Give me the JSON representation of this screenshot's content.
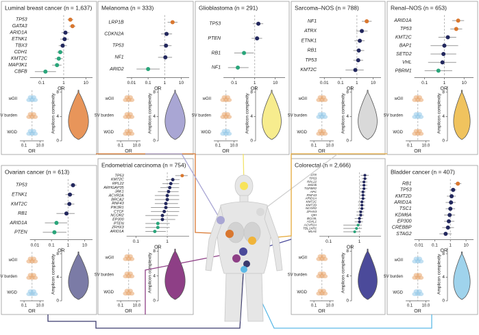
{
  "chart_data": [
    {
      "type": "forest",
      "title": "Luminal breast cancer (n = 1,637)",
      "genes": [
        "TP53",
        "GATA3",
        "ARID1A",
        "ETNK1",
        "TBX3",
        "CDH1",
        "KMT2C",
        "MAP3K1",
        "CBFB"
      ],
      "values": [
        2,
        2.5,
        1.2,
        1.1,
        0.9,
        0.7,
        0.6,
        0.5,
        0.15
      ],
      "ci_low": [
        1.5,
        1.8,
        0.8,
        0.7,
        0.6,
        0.5,
        0.4,
        0.3,
        0.05
      ],
      "ci_high": [
        2.7,
        3.4,
        1.8,
        1.7,
        1.4,
        1,
        0.9,
        0.8,
        0.45
      ],
      "point_colors": [
        "#d9772f",
        "#d9772f",
        "#23285e",
        "#23285e",
        "#23285e",
        "#2aa57a",
        "#2aa57a",
        "#2aa57a",
        "#2aa57a"
      ],
      "xlim": [
        0.03,
        20
      ],
      "xticks": [
        0.1,
        1,
        10
      ],
      "log_x": true,
      "xlabel": "OR",
      "mini": {
        "rows": [
          "wGII",
          "SV burden",
          "WGD"
        ],
        "xlim": [
          0.03,
          30
        ],
        "xticks": [
          0.1,
          {
            "value": 10,
            "label": "10.0"
          }
        ],
        "xlabel": "OR",
        "colors": [
          "#8fc6e8",
          "#e8a46a",
          "#8fc6e8"
        ]
      },
      "violin": {
        "ylabel": "Amplicon complexity",
        "ylim": [
          0,
          9
        ],
        "yticks": [
          0,
          4,
          8
        ],
        "color": "#e8955a"
      }
    },
    {
      "type": "forest",
      "title": "Melanoma (n = 333)",
      "genes": [
        "LRP1B",
        "CDKN2A",
        "TP53",
        "NF1",
        "ARID2"
      ],
      "values": [
        3,
        1.3,
        1.2,
        1.1,
        0.1
      ],
      "ci_low": [
        1.5,
        0.6,
        0.5,
        0.4,
        0.02
      ],
      "ci_high": [
        6,
        2.8,
        2.6,
        2.8,
        0.5
      ],
      "point_colors": [
        "#d9772f",
        "#23285e",
        "#23285e",
        "#23285e",
        "#2aa57a"
      ],
      "xlim": [
        0.005,
        30
      ],
      "xticks": [
        0.01,
        0.1,
        1,
        10
      ],
      "log_x": true,
      "xlabel": "OR",
      "mini": {
        "rows": [
          "wGII",
          "SV burden",
          "WGD"
        ],
        "xlim": [
          0.03,
          30
        ],
        "xticks": [
          0.1,
          {
            "value": 10,
            "label": "10.0"
          }
        ],
        "xlabel": "OR",
        "colors": [
          "#e8a46a",
          "#e8a46a",
          "#e8a46a"
        ]
      },
      "violin": {
        "ylabel": "Amplicon complexity",
        "ylim": [
          0,
          9
        ],
        "yticks": [
          0,
          4,
          8
        ],
        "color": "#a9a6d4"
      }
    },
    {
      "type": "forest",
      "title": "Glioblastoma (n = 291)",
      "genes": [
        "TP53",
        "PTEN",
        "RB1",
        "NF1"
      ],
      "values": [
        1.5,
        1.3,
        0.3,
        0.15
      ],
      "ci_low": [
        0.8,
        0.7,
        0.1,
        0.05
      ],
      "ci_high": [
        2.6,
        2.3,
        0.9,
        0.5
      ],
      "point_colors": [
        "#23285e",
        "#23285e",
        "#2aa57a",
        "#2aa57a"
      ],
      "xlim": [
        0.03,
        30
      ],
      "xticks": [
        0.1,
        1,
        10
      ],
      "log_x": true,
      "xlabel": "OR",
      "mini": {
        "rows": [
          "wGII",
          "SV burden",
          "WGD"
        ],
        "xlim": [
          0.03,
          30
        ],
        "xticks": [
          0.1,
          {
            "value": 10,
            "label": "10.0"
          }
        ],
        "xlabel": "OR",
        "colors": [
          "#e8a46a",
          "#e8a46a",
          "#8fc6e8"
        ]
      },
      "violin": {
        "ylabel": "Amplicon complexity",
        "ylim": [
          0,
          9
        ],
        "yticks": [
          0,
          4,
          8
        ],
        "color": "#f7ec8e"
      }
    },
    {
      "type": "forest",
      "title": "Sarcoma–NOS (n = 788)",
      "genes": [
        "NF1",
        "ATRX",
        "ETNK1",
        "RB1",
        "TP53",
        "KMT2C"
      ],
      "values": [
        4,
        2,
        1.5,
        1.3,
        1.2,
        0.8
      ],
      "ci_low": [
        2,
        0.9,
        0.7,
        0.6,
        0.6,
        0.2
      ],
      "ci_high": [
        8,
        4.5,
        3,
        2.8,
        2.4,
        2.6
      ],
      "point_colors": [
        "#d9772f",
        "#23285e",
        "#23285e",
        "#23285e",
        "#23285e",
        "#23285e"
      ],
      "xlim": [
        0.005,
        30
      ],
      "xticks": [
        0.01,
        0.1,
        1,
        10
      ],
      "log_x": true,
      "xlabel": "OR",
      "mini": {
        "rows": [
          "wGII",
          "SV burden",
          "WGD"
        ],
        "xlim": [
          0.03,
          30
        ],
        "xticks": [
          0.1,
          {
            "value": 10,
            "label": "10.0"
          }
        ],
        "xlabel": "OR",
        "colors": [
          "#e8a46a",
          "#8fc6e8",
          "#e8a46a"
        ]
      },
      "violin": {
        "ylabel": "Amplicon complexity",
        "ylim": [
          0,
          9
        ],
        "yticks": [
          0,
          4,
          8
        ],
        "color": "#d9d9d9"
      }
    },
    {
      "type": "forest",
      "title": "Renal–NOS (n = 653)",
      "genes": [
        "ARID1A",
        "TP53",
        "KMT2C",
        "BAP1",
        "SETD2",
        "VHL",
        "PBRM1"
      ],
      "values": [
        5,
        4,
        1.5,
        1,
        0.9,
        0.8,
        0.5
      ],
      "ci_low": [
        2.5,
        2,
        0.5,
        0.2,
        0.2,
        0.15,
        0.1
      ],
      "ci_high": [
        10,
        8,
        4,
        5,
        4,
        4,
        2.5
      ],
      "point_colors": [
        "#d9772f",
        "#d9772f",
        "#23285e",
        "#23285e",
        "#23285e",
        "#23285e",
        "#2aa57a"
      ],
      "xlim": [
        0.03,
        30
      ],
      "xticks": [
        0.1,
        1,
        10
      ],
      "log_x": true,
      "xlabel": "OR",
      "mini": {
        "rows": [
          "wGII",
          "SV burden",
          "WGD"
        ],
        "xlim": [
          0.03,
          30
        ],
        "xticks": [
          0.1,
          {
            "value": 10,
            "label": "10.0"
          }
        ],
        "xlabel": "OR",
        "colors": [
          "#e8a46a",
          "#8fc6e8",
          "#e8a46a"
        ]
      },
      "violin": {
        "ylabel": "Amplicon complexity",
        "ylim": [
          0,
          9
        ],
        "yticks": [
          0,
          4,
          8
        ],
        "color": "#f0c35e"
      }
    },
    {
      "type": "forest",
      "title": "Ovarian cancer (n = 613)",
      "genes": [
        "TP53",
        "ETNK1",
        "KMT2C",
        "RB1",
        "ARID1A",
        "PTEN"
      ],
      "values": [
        2,
        1.3,
        1.2,
        0.8,
        0.2,
        0.15
      ],
      "ci_low": [
        1.2,
        0.7,
        0.6,
        0.2,
        0.04,
        0.03
      ],
      "ci_high": [
        3.3,
        2.4,
        2.4,
        2.5,
        0.9,
        0.8
      ],
      "point_colors": [
        "#23285e",
        "#23285e",
        "#23285e",
        "#23285e",
        "#2aa57a",
        "#2aa57a"
      ],
      "xlim": [
        0.005,
        30
      ],
      "xticks": [
        0.01,
        0.1,
        1,
        10
      ],
      "log_x": true,
      "xlabel": "OR",
      "mini": {
        "rows": [
          "wGII",
          "SV burden",
          "WGD"
        ],
        "xlim": [
          0.03,
          30
        ],
        "xticks": [
          0.1,
          {
            "value": 10,
            "label": "10.0"
          }
        ],
        "xlabel": "OR",
        "colors": [
          "#e8a46a",
          "#e8a46a",
          "#8fc6e8"
        ]
      },
      "violin": {
        "ylabel": "Amplicon complexity",
        "ylim": [
          0,
          9
        ],
        "yticks": [
          0,
          4,
          8
        ],
        "color": "#7b7ba6"
      }
    },
    {
      "type": "forest",
      "title": "Endometrial carcinoma (n = 754)",
      "genes": [
        "TP53",
        "KMT2C",
        "RPL22",
        "ARHGAP35",
        "JAK1",
        "ACVR2A",
        "BRCA2",
        "RNF43",
        "PIK3R1",
        "CTCF",
        "NCOR2",
        "EP300",
        "PTEN",
        "ZFHX3",
        "ARID1A"
      ],
      "values": [
        3,
        1.5,
        1.3,
        1.2,
        1.1,
        1,
        1,
        0.9,
        0.9,
        0.8,
        0.7,
        0.7,
        0.5,
        0.5,
        0.4
      ],
      "ci_low": [
        1.8,
        0.9,
        0.7,
        0.6,
        0.5,
        0.4,
        0.4,
        0.4,
        0.3,
        0.3,
        0.2,
        0.3,
        0.2,
        0.2,
        0.2
      ],
      "ci_high": [
        4.5,
        2.5,
        2.4,
        2.4,
        2.3,
        2.4,
        2.4,
        2.2,
        2.5,
        2.4,
        2.2,
        1.8,
        1.2,
        1.2,
        0.9
      ],
      "point_colors": [
        "#d9772f",
        "#23285e",
        "#23285e",
        "#23285e",
        "#23285e",
        "#23285e",
        "#23285e",
        "#23285e",
        "#23285e",
        "#23285e",
        "#23285e",
        "#23285e",
        "#2aa57a",
        "#2aa57a",
        "#2aa57a"
      ],
      "xlim": [
        0.05,
        5
      ],
      "xticks": [
        0.1,
        1
      ],
      "log_x": true,
      "xlabel": "OR",
      "mini": {
        "rows": [
          "wGII",
          "SV burden",
          "WGD"
        ],
        "xlim": [
          0.03,
          30
        ],
        "xticks": [
          0.1,
          {
            "value": 10,
            "label": "10.0"
          }
        ],
        "xlabel": "OR",
        "colors": [
          "#e8a46a",
          "#e8a46a",
          "#e8a46a"
        ]
      },
      "violin": {
        "ylabel": "Amplicon complexity",
        "ylim": [
          0,
          9
        ],
        "yticks": [
          0,
          4,
          8
        ],
        "color": "#8e3f86"
      }
    },
    {
      "type": "forest",
      "title": "Colorectal (n = 2,666)",
      "genes": [
        "ATR",
        "TP53",
        "RPL22",
        "MSH6",
        "TGFBR2",
        "APC",
        "RNF43",
        "ARID1A",
        "KMT2C",
        "KMT2D",
        "NCOR2",
        "ZFHX3",
        "QKI",
        "BCL9L",
        "ASXL1",
        "ACVR2A",
        "TBL1XR1",
        "MLH1"
      ],
      "values": [
        1.5,
        1.5,
        1.4,
        1.4,
        1.4,
        1.3,
        1.3,
        1.3,
        1.2,
        1.2,
        1.2,
        1.1,
        1.1,
        1,
        1,
        0.9,
        0.8,
        0.7
      ],
      "ci_low": [
        1.1,
        1.2,
        1,
        1,
        1,
        1,
        1,
        1,
        0.9,
        0.9,
        0.9,
        0.8,
        0.8,
        0.7,
        0.7,
        0.3,
        0.3,
        0.3
      ],
      "ci_high": [
        2,
        1.8,
        1.8,
        1.8,
        1.8,
        1.6,
        1.6,
        1.6,
        1.5,
        1.5,
        1.5,
        1.4,
        1.4,
        1.3,
        1.3,
        1.2,
        1.2,
        1.1
      ],
      "point_colors": [
        "#23285e",
        "#23285e",
        "#23285e",
        "#23285e",
        "#23285e",
        "#23285e",
        "#23285e",
        "#23285e",
        "#23285e",
        "#23285e",
        "#23285e",
        "#23285e",
        "#23285e",
        "#23285e",
        "#23285e",
        "#2aa57a",
        "#2aa57a",
        "#2aa57a"
      ],
      "xlim": [
        0.05,
        5
      ],
      "xticks": [
        0.1,
        1
      ],
      "log_x": true,
      "xlabel": "OR",
      "mini": {
        "rows": [
          "wGII",
          "SV burden",
          "WGD"
        ],
        "xlim": [
          0.03,
          30
        ],
        "xticks": [
          0.1,
          {
            "value": 10,
            "label": "10.0"
          }
        ],
        "xlabel": "OR",
        "colors": [
          "#e8a46a",
          "#e8a46a",
          "#e8a46a"
        ]
      },
      "violin": {
        "ylabel": "Amplicon complexity",
        "ylim": [
          0,
          9
        ],
        "yticks": [
          0,
          4,
          8
        ],
        "color": "#4b4a9a"
      }
    },
    {
      "type": "forest",
      "title": "Bladder cancer (n = 407)",
      "genes": [
        "RB1",
        "TP53",
        "KMT2D",
        "ARID1A",
        "TSC1",
        "KDM6A",
        "EP300",
        "CREBBP",
        "STAG2"
      ],
      "values": [
        3,
        1.5,
        1.2,
        1.1,
        1,
        0.9,
        0.8,
        0.7,
        0.5
      ],
      "ci_low": [
        1.8,
        0.9,
        0.6,
        0.5,
        0.5,
        0.4,
        0.4,
        0.3,
        0.2
      ],
      "ci_high": [
        5,
        2.4,
        2.2,
        2.2,
        2,
        2,
        1.8,
        1.7,
        1.2
      ],
      "point_colors": [
        "#d9772f",
        "#23285e",
        "#23285e",
        "#23285e",
        "#23285e",
        "#23285e",
        "#23285e",
        "#23285e",
        "#23285e"
      ],
      "xlim": [
        0.005,
        30
      ],
      "xticks": [
        0.01,
        0.1,
        1,
        10
      ],
      "log_x": true,
      "xlabel": "OR",
      "mini": {
        "rows": [
          "wGII",
          "SV burden",
          "WGD"
        ],
        "xlim": [
          0.03,
          30
        ],
        "xticks": [
          0.1,
          {
            "value": 10,
            "label": "10.0"
          }
        ],
        "xlabel": "OR",
        "colors": [
          "#8fc6e8",
          "#e8a46a",
          "#8fc6e8"
        ]
      },
      "violin": {
        "ylabel": "Amplicon complexity",
        "ylim": [
          0,
          9
        ],
        "yticks": [
          0,
          4,
          8
        ],
        "color": "#9fd3ec"
      }
    }
  ]
}
